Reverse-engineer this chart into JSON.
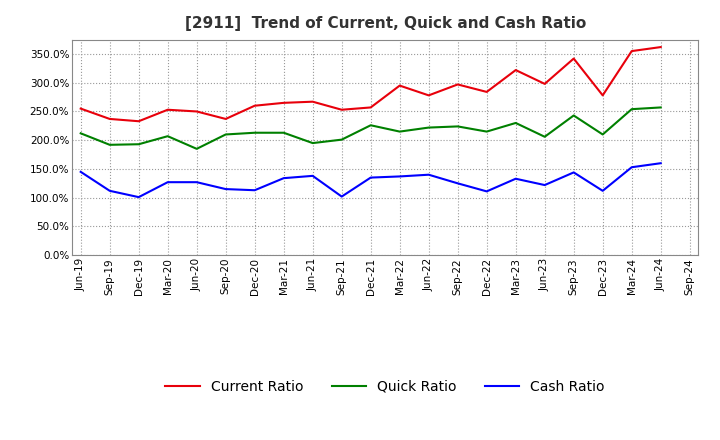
{
  "title": "[2911]  Trend of Current, Quick and Cash Ratio",
  "x_labels": [
    "Jun-19",
    "Sep-19",
    "Dec-19",
    "Mar-20",
    "Jun-20",
    "Sep-20",
    "Dec-20",
    "Mar-21",
    "Jun-21",
    "Sep-21",
    "Dec-21",
    "Mar-22",
    "Jun-22",
    "Sep-22",
    "Dec-22",
    "Mar-23",
    "Jun-23",
    "Sep-23",
    "Dec-23",
    "Mar-24",
    "Jun-24",
    "Sep-24"
  ],
  "current_ratio": [
    255,
    237,
    233,
    253,
    250,
    237,
    260,
    265,
    267,
    253,
    257,
    295,
    278,
    297,
    284,
    322,
    298,
    342,
    278,
    355,
    362,
    null
  ],
  "quick_ratio": [
    212,
    192,
    193,
    207,
    185,
    210,
    213,
    213,
    195,
    201,
    226,
    215,
    222,
    224,
    215,
    230,
    206,
    243,
    210,
    254,
    257,
    null
  ],
  "cash_ratio": [
    145,
    112,
    101,
    127,
    127,
    115,
    113,
    134,
    138,
    102,
    135,
    137,
    140,
    125,
    111,
    133,
    122,
    144,
    112,
    153,
    160,
    null
  ],
  "current_color": "#e8000b",
  "quick_color": "#008000",
  "cash_color": "#0000ff",
  "ylim": [
    0,
    375
  ],
  "yticks": [
    0,
    50,
    100,
    150,
    200,
    250,
    300,
    350
  ],
  "background_color": "#ffffff",
  "grid_color": "#999999",
  "legend_labels": [
    "Current Ratio",
    "Quick Ratio",
    "Cash Ratio"
  ]
}
